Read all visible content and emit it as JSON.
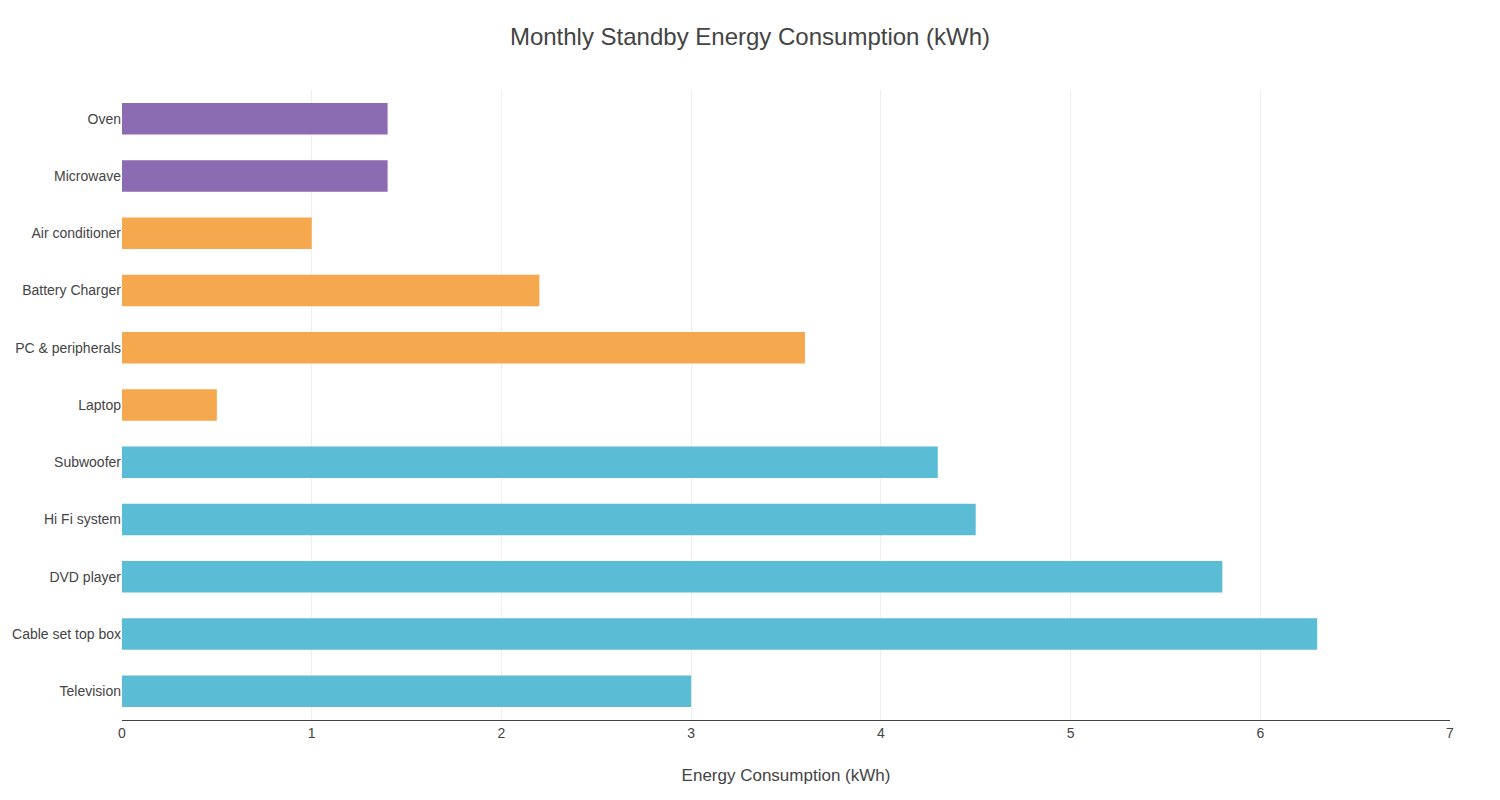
{
  "chart_data": {
    "type": "bar",
    "orientation": "horizontal",
    "title": "Monthly Standby Energy Consumption (kWh)",
    "xlabel": "Energy Consumption (kWh)",
    "categories": [
      "Television",
      "Cable set top box",
      "DVD player",
      "Hi Fi system",
      "Subwoofer",
      "Laptop",
      "PC & peripherals",
      "Battery Charger",
      "Air conditioner",
      "Microwave",
      "Oven"
    ],
    "values": [
      3.0,
      6.3,
      5.8,
      4.5,
      4.3,
      0.5,
      3.6,
      2.2,
      1.0,
      1.4,
      1.4
    ],
    "colors": [
      "#5bbcd6",
      "#5bbcd6",
      "#5bbcd6",
      "#5bbcd6",
      "#5bbcd6",
      "#f5a84e",
      "#f5a84e",
      "#f5a84e",
      "#f5a84e",
      "#8b6bb1",
      "#8b6bb1"
    ],
    "xlim": [
      0,
      7
    ],
    "xticks": [
      0,
      1,
      2,
      3,
      4,
      5,
      6,
      7
    ],
    "grid": true
  }
}
